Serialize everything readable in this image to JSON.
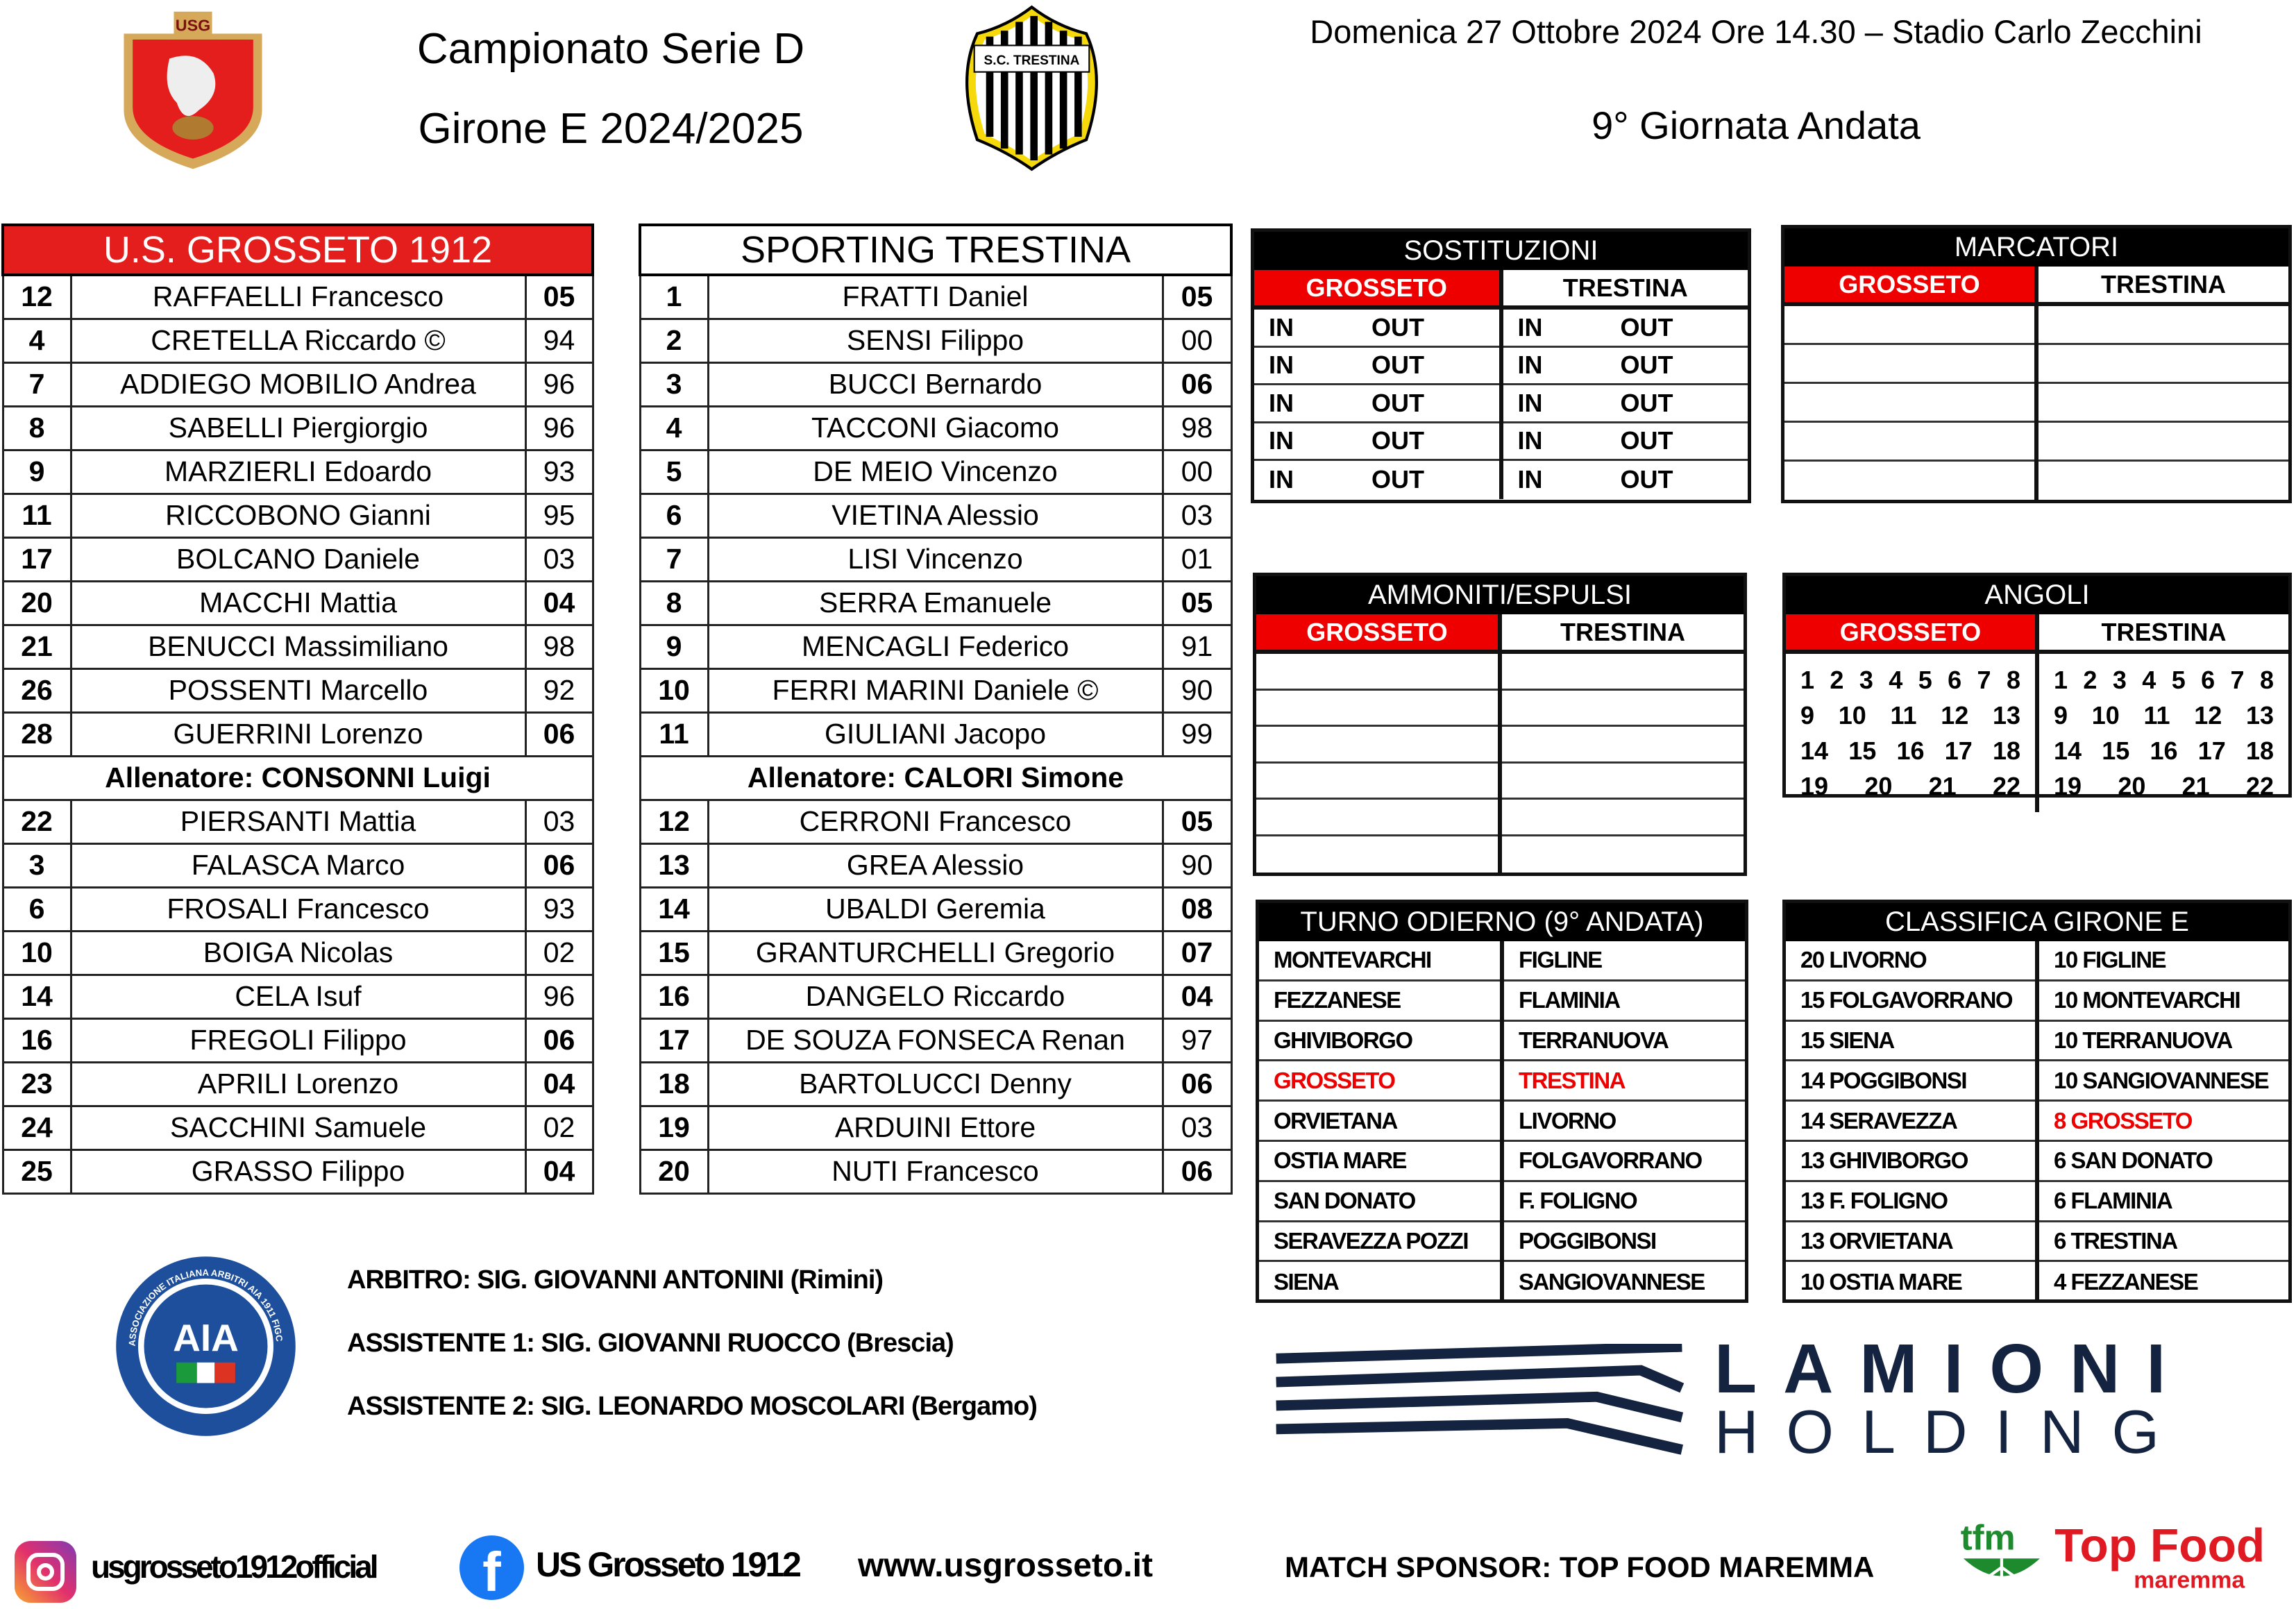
{
  "header": {
    "competition": "Campionato Serie D",
    "group": "Girone E 2024/2025",
    "match_info": "Domenica 27 Ottobre 2024 Ore 14.30 – Stadio Carlo Zecchini",
    "round": "9° Giornata Andata",
    "home_crest_text": "USG",
    "away_crest_text": "S.C. TRESTINA"
  },
  "home": {
    "name": "U.S. GROSSETO 1912",
    "starters": [
      {
        "num": "12",
        "name": "RAFFAELLI Francesco",
        "year": "05"
      },
      {
        "num": "4",
        "name": "CRETELLA Riccardo ©",
        "year": "94"
      },
      {
        "num": "7",
        "name": "ADDIEGO MOBILIO Andrea",
        "year": "96"
      },
      {
        "num": "8",
        "name": "SABELLI Piergiorgio",
        "year": "96"
      },
      {
        "num": "9",
        "name": "MARZIERLI Edoardo",
        "year": "93"
      },
      {
        "num": "11",
        "name": "RICCOBONO Gianni",
        "year": "95"
      },
      {
        "num": "17",
        "name": "BOLCANO Daniele",
        "year": "03"
      },
      {
        "num": "20",
        "name": "MACCHI Mattia",
        "year": "04"
      },
      {
        "num": "21",
        "name": "BENUCCI Massimiliano",
        "year": "98"
      },
      {
        "num": "26",
        "name": "POSSENTI Marcello",
        "year": "92"
      },
      {
        "num": "28",
        "name": "GUERRINI Lorenzo",
        "year": "06"
      }
    ],
    "coach": "Allenatore: CONSONNI Luigi",
    "bench": [
      {
        "num": "22",
        "name": "PIERSANTI Mattia",
        "year": "03"
      },
      {
        "num": "3",
        "name": "FALASCA Marco",
        "year": "06"
      },
      {
        "num": "6",
        "name": "FROSALI Francesco",
        "year": "93"
      },
      {
        "num": "10",
        "name": "BOIGA Nicolas",
        "year": "02"
      },
      {
        "num": "14",
        "name": "CELA Isuf",
        "year": "96"
      },
      {
        "num": "16",
        "name": "FREGOLI Filippo",
        "year": "06"
      },
      {
        "num": "23",
        "name": "APRILI Lorenzo",
        "year": "04"
      },
      {
        "num": "24",
        "name": "SACCHINI Samuele",
        "year": "02"
      },
      {
        "num": "25",
        "name": "GRASSO Filippo",
        "year": "04"
      }
    ]
  },
  "away": {
    "name": "SPORTING TRESTINA",
    "starters": [
      {
        "num": "1",
        "name": "FRATTI Daniel",
        "year": "05"
      },
      {
        "num": "2",
        "name": "SENSI Filippo",
        "year": "00"
      },
      {
        "num": "3",
        "name": "BUCCI Bernardo",
        "year": "06"
      },
      {
        "num": "4",
        "name": "TACCONI Giacomo",
        "year": "98"
      },
      {
        "num": "5",
        "name": "DE MEIO Vincenzo",
        "year": "00"
      },
      {
        "num": "6",
        "name": "VIETINA Alessio",
        "year": "03"
      },
      {
        "num": "7",
        "name": "LISI Vincenzo",
        "year": "01"
      },
      {
        "num": "8",
        "name": "SERRA Emanuele",
        "year": "05"
      },
      {
        "num": "9",
        "name": "MENCAGLI Federico",
        "year": "91"
      },
      {
        "num": "10",
        "name": "FERRI MARINI Daniele ©",
        "year": "90"
      },
      {
        "num": "11",
        "name": "GIULIANI Jacopo",
        "year": "99"
      }
    ],
    "coach": "Allenatore: CALORI Simone",
    "bench": [
      {
        "num": "12",
        "name": "CERRONI Francesco",
        "year": "05"
      },
      {
        "num": "13",
        "name": "GREA Alessio",
        "year": "90"
      },
      {
        "num": "14",
        "name": "UBALDI Geremia",
        "year": "08"
      },
      {
        "num": "15",
        "name": "GRANTURCHELLI Gregorio",
        "year": "07"
      },
      {
        "num": "16",
        "name": "DANGELO Riccardo",
        "year": "04"
      },
      {
        "num": "17",
        "name": "DE SOUZA FONSECA Renan",
        "year": "97"
      },
      {
        "num": "18",
        "name": "BARTOLUCCI Denny",
        "year": "06"
      },
      {
        "num": "19",
        "name": "ARDUINI Ettore",
        "year": "03"
      },
      {
        "num": "20",
        "name": "NUTI Francesco",
        "year": "06"
      }
    ]
  },
  "teams_short": {
    "home": "GROSSETO",
    "away": "TRESTINA"
  },
  "substitutions": {
    "title": "SOSTITUZIONI",
    "in_label": "IN",
    "out_label": "OUT"
  },
  "scorers": {
    "title": "MARCATORI"
  },
  "bookings": {
    "title": "AMMONITI/ESPULSI"
  },
  "corners": {
    "title": "ANGOLI",
    "rows": [
      [
        "1",
        "2",
        "3",
        "4",
        "5",
        "6",
        "7",
        "8"
      ],
      [
        "9",
        "10",
        "11",
        "12",
        "13"
      ],
      [
        "14",
        "15",
        "16",
        "17",
        "18"
      ],
      [
        "19",
        "20",
        "21",
        "22"
      ]
    ]
  },
  "fixtures": {
    "title": "TURNO ODIERNO (9° ANDATA)",
    "matches": [
      [
        "MONTEVARCHI",
        "FIGLINE"
      ],
      [
        "FEZZANESE",
        "FLAMINIA"
      ],
      [
        "GHIVIBORGO",
        "TERRANUOVA"
      ],
      [
        "GROSSETO",
        "TRESTINA"
      ],
      [
        "ORVIETANA",
        "LIVORNO"
      ],
      [
        "OSTIA MARE",
        "FOLGAVORRANO"
      ],
      [
        "SAN DONATO",
        "F. FOLIGNO"
      ],
      [
        "SERAVEZZA POZZI",
        "POGGIBONSI"
      ],
      [
        "SIENA",
        "SANGIOVANNESE"
      ]
    ],
    "highlight_index": 3
  },
  "standings": {
    "title": "CLASSIFICA GIRONE E",
    "left": [
      "20 LIVORNO",
      "15 FOLGAVORRANO",
      "15 SIENA",
      "14 POGGIBONSI",
      "14 SERAVEZZA",
      "13 GHIVIBORGO",
      "13 F. FOLIGNO",
      "13 ORVIETANA",
      "10 OSTIA MARE"
    ],
    "right": [
      "10 FIGLINE",
      "10 MONTEVARCHI",
      "10 TERRANUOVA",
      "10 SANGIOVANNESE",
      "8 GROSSETO",
      "6 SAN DONATO",
      "6 FLAMINIA",
      "6 TRESTINA",
      "4 FEZZANESE"
    ],
    "highlight": "8 GROSSETO"
  },
  "officials": {
    "referee": "ARBITRO: SIG. GIOVANNI ANTONINI (Rimini)",
    "assistant1": "ASSISTENTE 1: SIG. GIOVANNI RUOCCO (Brescia)",
    "assistant2": "ASSISTENTE 2: SIG. LEONARDO MOSCOLARI (Bergamo)",
    "aia_logo_text": "ASSOCIAZIONE ITALIANA ARBITRI AIA 1911 FIGC"
  },
  "sponsor_logo": {
    "line1": "LAMIONI",
    "line2": "HOLDING"
  },
  "footer": {
    "instagram": "usgrosseto1912official",
    "facebook": "US Grosseto 1912",
    "website": "www.usgrosseto.it",
    "match_sponsor": "MATCH SPONSOR: TOP FOOD MAREMMA",
    "sponsor_logo_text": "tfm Top Food maremma"
  },
  "colors": {
    "red": "#e00000",
    "black": "#000000",
    "facebook_blue": "#1877f2",
    "sponsor_green": "#1e8a2e"
  }
}
